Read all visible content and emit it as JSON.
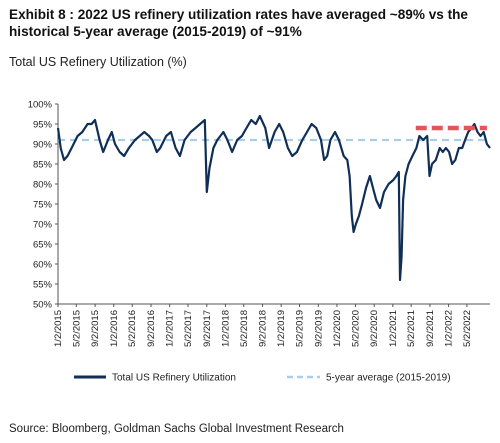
{
  "header": {
    "title": "Exhibit 8 : 2022 US refinery utilization rates have averaged ~89% vs the historical 5-year average (2015-2019) of ~91%",
    "subtitle": "Total US Refinery Utilization (%)"
  },
  "footer": {
    "source": "Source: Bloomberg, Goldman Sachs Global Investment Research"
  },
  "colors": {
    "main_series": "#0f2f57",
    "five_year_avg": "#a9cdea",
    "highlight_2022": "#e8525a"
  },
  "chart_data": {
    "type": "line",
    "title": "Total US Refinery Utilization (%)",
    "ylim": [
      50,
      100
    ],
    "y_ticks": [
      {
        "value": 50,
        "label": "50%"
      },
      {
        "value": 55,
        "label": "55%"
      },
      {
        "value": 60,
        "label": "60%"
      },
      {
        "value": 65,
        "label": "65%"
      },
      {
        "value": 70,
        "label": "70%"
      },
      {
        "value": 75,
        "label": "75%"
      },
      {
        "value": 80,
        "label": "80%"
      },
      {
        "value": 85,
        "label": "85%"
      },
      {
        "value": 90,
        "label": "90%"
      },
      {
        "value": 95,
        "label": "95%"
      },
      {
        "value": 100,
        "label": "100%"
      }
    ],
    "x_range": [
      "2015-01-02",
      "2022-09-30"
    ],
    "x_ticks": [
      {
        "date": "2015-01-02",
        "label": "1/2/2015"
      },
      {
        "date": "2015-05-02",
        "label": "5/2/2015"
      },
      {
        "date": "2015-09-02",
        "label": "9/2/2015"
      },
      {
        "date": "2016-01-02",
        "label": "1/2/2016"
      },
      {
        "date": "2016-05-02",
        "label": "5/2/2016"
      },
      {
        "date": "2016-09-02",
        "label": "9/2/2016"
      },
      {
        "date": "2017-01-02",
        "label": "1/2/2017"
      },
      {
        "date": "2017-05-02",
        "label": "5/2/2017"
      },
      {
        "date": "2017-09-02",
        "label": "9/2/2017"
      },
      {
        "date": "2018-01-02",
        "label": "1/2/2018"
      },
      {
        "date": "2018-05-02",
        "label": "5/2/2018"
      },
      {
        "date": "2018-09-02",
        "label": "9/2/2018"
      },
      {
        "date": "2019-01-02",
        "label": "1/2/2019"
      },
      {
        "date": "2019-05-02",
        "label": "5/2/2019"
      },
      {
        "date": "2019-09-02",
        "label": "9/2/2019"
      },
      {
        "date": "2020-01-02",
        "label": "1/2/2020"
      },
      {
        "date": "2020-05-02",
        "label": "5/2/2020"
      },
      {
        "date": "2020-09-02",
        "label": "9/2/2020"
      },
      {
        "date": "2021-01-02",
        "label": "1/2/2021"
      },
      {
        "date": "2021-05-02",
        "label": "5/2/2021"
      },
      {
        "date": "2021-09-02",
        "label": "9/2/2021"
      },
      {
        "date": "2022-01-02",
        "label": "1/2/2022"
      },
      {
        "date": "2022-05-02",
        "label": "5/2/2022"
      }
    ],
    "series": [
      {
        "name": "Total US Refinery Utilization",
        "style": "solid",
        "points": [
          [
            "2015-01-02",
            94
          ],
          [
            "2015-01-20",
            89
          ],
          [
            "2015-02-10",
            86
          ],
          [
            "2015-03-05",
            87
          ],
          [
            "2015-04-01",
            89
          ],
          [
            "2015-05-10",
            92
          ],
          [
            "2015-06-10",
            93
          ],
          [
            "2015-07-15",
            95
          ],
          [
            "2015-08-10",
            95
          ],
          [
            "2015-09-01",
            96
          ],
          [
            "2015-10-01",
            91
          ],
          [
            "2015-10-25",
            88
          ],
          [
            "2015-11-25",
            91
          ],
          [
            "2015-12-20",
            93
          ],
          [
            "2016-01-10",
            90
          ],
          [
            "2016-02-10",
            88
          ],
          [
            "2016-03-10",
            87
          ],
          [
            "2016-04-10",
            89
          ],
          [
            "2016-05-20",
            91
          ],
          [
            "2016-06-20",
            92
          ],
          [
            "2016-07-20",
            93
          ],
          [
            "2016-08-20",
            92
          ],
          [
            "2016-09-10",
            91
          ],
          [
            "2016-10-10",
            88
          ],
          [
            "2016-11-01",
            89
          ],
          [
            "2016-12-10",
            92
          ],
          [
            "2017-01-10",
            93
          ],
          [
            "2017-02-10",
            89
          ],
          [
            "2017-03-10",
            87
          ],
          [
            "2017-04-10",
            91
          ],
          [
            "2017-05-20",
            93
          ],
          [
            "2017-06-20",
            94
          ],
          [
            "2017-07-20",
            95
          ],
          [
            "2017-08-20",
            96
          ],
          [
            "2017-09-02",
            78
          ],
          [
            "2017-09-20",
            84
          ],
          [
            "2017-10-15",
            89
          ],
          [
            "2017-11-10",
            91
          ],
          [
            "2017-12-20",
            93
          ],
          [
            "2018-01-15",
            91
          ],
          [
            "2018-02-15",
            88
          ],
          [
            "2018-03-20",
            91
          ],
          [
            "2018-04-20",
            92
          ],
          [
            "2018-05-20",
            94
          ],
          [
            "2018-06-20",
            96
          ],
          [
            "2018-07-20",
            95
          ],
          [
            "2018-08-15",
            97
          ],
          [
            "2018-09-20",
            94
          ],
          [
            "2018-10-15",
            89
          ],
          [
            "2018-11-20",
            93
          ],
          [
            "2018-12-20",
            95
          ],
          [
            "2019-01-15",
            93
          ],
          [
            "2019-02-15",
            89
          ],
          [
            "2019-03-15",
            87
          ],
          [
            "2019-04-15",
            88
          ],
          [
            "2019-05-20",
            91
          ],
          [
            "2019-06-20",
            93
          ],
          [
            "2019-07-20",
            95
          ],
          [
            "2019-08-20",
            94
          ],
          [
            "2019-09-20",
            91
          ],
          [
            "2019-10-10",
            86
          ],
          [
            "2019-10-30",
            87
          ],
          [
            "2019-11-20",
            91
          ],
          [
            "2019-12-20",
            93
          ],
          [
            "2020-01-15",
            91
          ],
          [
            "2020-02-15",
            87
          ],
          [
            "2020-03-10",
            86
          ],
          [
            "2020-03-25",
            82
          ],
          [
            "2020-04-08",
            72
          ],
          [
            "2020-04-20",
            68
          ],
          [
            "2020-05-05",
            70
          ],
          [
            "2020-05-25",
            72
          ],
          [
            "2020-06-15",
            75
          ],
          [
            "2020-07-10",
            79
          ],
          [
            "2020-08-05",
            82
          ],
          [
            "2020-08-25",
            79
          ],
          [
            "2020-09-15",
            76
          ],
          [
            "2020-10-10",
            74
          ],
          [
            "2020-11-05",
            78
          ],
          [
            "2020-12-05",
            80
          ],
          [
            "2021-01-05",
            81
          ],
          [
            "2021-01-25",
            82
          ],
          [
            "2021-02-10",
            83
          ],
          [
            "2021-02-18",
            56
          ],
          [
            "2021-02-28",
            62
          ],
          [
            "2021-03-10",
            76
          ],
          [
            "2021-03-25",
            82
          ],
          [
            "2021-04-15",
            85
          ],
          [
            "2021-05-10",
            87
          ],
          [
            "2021-06-05",
            89
          ],
          [
            "2021-06-25",
            92
          ],
          [
            "2021-07-20",
            91
          ],
          [
            "2021-08-15",
            92
          ],
          [
            "2021-08-30",
            82
          ],
          [
            "2021-09-15",
            85
          ],
          [
            "2021-10-10",
            86
          ],
          [
            "2021-11-05",
            89
          ],
          [
            "2021-11-25",
            88
          ],
          [
            "2021-12-15",
            89
          ],
          [
            "2022-01-05",
            88
          ],
          [
            "2022-01-25",
            85
          ],
          [
            "2022-02-15",
            86
          ],
          [
            "2022-03-10",
            89
          ],
          [
            "2022-04-01",
            89
          ],
          [
            "2022-04-20",
            91
          ],
          [
            "2022-05-10",
            93
          ],
          [
            "2022-06-01",
            94
          ],
          [
            "2022-06-20",
            95
          ],
          [
            "2022-07-10",
            93
          ],
          [
            "2022-07-30",
            92
          ],
          [
            "2022-08-20",
            93
          ],
          [
            "2022-09-10",
            90
          ],
          [
            "2022-09-30",
            89
          ]
        ]
      },
      {
        "name": "5-year average (2015-2019)",
        "style": "dashed",
        "value": 91,
        "x_range": [
          "2015-01-02",
          "2022-09-30"
        ]
      },
      {
        "name": "",
        "style": "dashed-bold",
        "value": 94,
        "x_range": [
          "2021-06-01",
          "2022-09-10"
        ]
      }
    ],
    "legend": {
      "position": "bottom",
      "entries": [
        "Total US Refinery Utilization",
        "5-year average (2015-2019)"
      ]
    },
    "grid": false
  }
}
